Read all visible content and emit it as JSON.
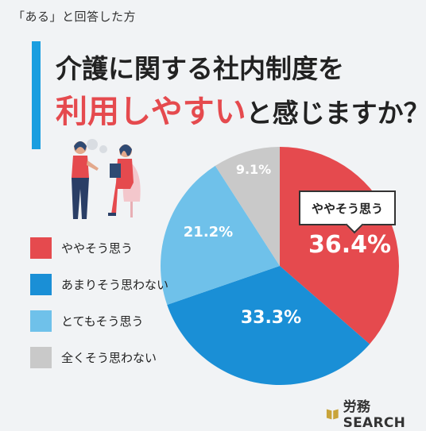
{
  "subtitle": "「ある」と回答した方",
  "title": {
    "line1": "介護に関する社内制度を",
    "line2_highlight": "利用しやすい",
    "line2_rest": "と感じますか？"
  },
  "callout_label": "ややそう思う",
  "brand": {
    "text": "労務SEARCH"
  },
  "colors": {
    "accent_bar": "#1a9ee0",
    "highlight": "#e54a4e"
  },
  "chart_data": {
    "type": "pie",
    "start_angle_deg": 0,
    "direction": "clockwise",
    "slices": [
      {
        "label": "ややそう思う",
        "value": 36.4,
        "display": "36.4%",
        "color": "#e54a4e"
      },
      {
        "label": "あまりそう思わない",
        "value": 33.3,
        "display": "33.3%",
        "color": "#1a8fd6"
      },
      {
        "label": "とてもそう思う",
        "value": 21.2,
        "display": "21.2%",
        "color": "#6fc1ea"
      },
      {
        "label": "全くそう思わない",
        "value": 9.1,
        "display": "9.1%",
        "color": "#c9c9c9"
      }
    ]
  }
}
